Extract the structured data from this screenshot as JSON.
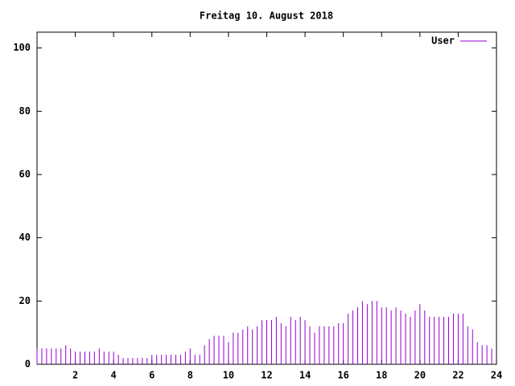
{
  "chart_data": {
    "type": "impulses",
    "title": "Freitag 10. August 2018",
    "x": [
      0,
      0.25,
      0.5,
      0.75,
      1,
      1.25,
      1.5,
      1.75,
      2,
      2.25,
      2.5,
      2.75,
      3,
      3.25,
      3.5,
      3.75,
      4,
      4.25,
      4.5,
      4.75,
      5,
      5.25,
      5.5,
      5.75,
      6,
      6.25,
      6.5,
      6.75,
      7,
      7.25,
      7.5,
      7.75,
      8,
      8.25,
      8.5,
      8.75,
      9,
      9.25,
      9.5,
      9.75,
      10,
      10.25,
      10.5,
      10.75,
      11,
      11.25,
      11.5,
      11.75,
      12,
      12.25,
      12.5,
      12.75,
      13,
      13.25,
      13.5,
      13.75,
      14,
      14.25,
      14.5,
      14.75,
      15,
      15.25,
      15.5,
      15.75,
      16,
      16.25,
      16.5,
      16.75,
      17,
      17.25,
      17.5,
      17.75,
      18,
      18.25,
      18.5,
      18.75,
      19,
      19.25,
      19.5,
      19.75,
      20,
      20.25,
      20.5,
      20.75,
      21,
      21.25,
      21.5,
      21.75,
      22,
      22.25,
      22.5,
      22.75,
      23,
      23.25,
      23.5,
      23.75
    ],
    "series": [
      {
        "name": "User",
        "color": "#9400d3",
        "values": [
          5,
          5,
          5,
          5,
          5,
          5,
          6,
          5,
          4,
          4,
          4,
          4,
          4,
          5,
          4,
          4,
          4,
          3,
          2,
          2,
          2,
          2,
          2,
          2,
          3,
          3,
          3,
          3,
          3,
          3,
          3,
          4,
          5,
          3,
          3,
          6,
          8,
          9,
          9,
          9,
          7,
          10,
          10,
          11,
          12,
          11,
          12,
          14,
          14,
          14,
          15,
          13,
          12,
          15,
          14,
          15,
          14,
          12,
          10,
          12,
          12,
          12,
          12,
          13,
          13,
          16,
          17,
          18,
          20,
          19,
          20,
          20,
          18,
          18,
          17,
          18,
          17,
          16,
          15,
          17,
          19,
          17,
          15,
          15,
          15,
          15,
          15,
          16,
          16,
          16,
          12,
          11,
          7,
          6,
          6,
          5
        ]
      }
    ],
    "xlim": [
      0,
      24
    ],
    "xticks": [
      2,
      4,
      6,
      8,
      10,
      12,
      14,
      16,
      18,
      20,
      22,
      24
    ],
    "ylim": [
      0,
      105
    ],
    "yticks": [
      0,
      20,
      40,
      60,
      80,
      100
    ],
    "legend": "top-right"
  }
}
